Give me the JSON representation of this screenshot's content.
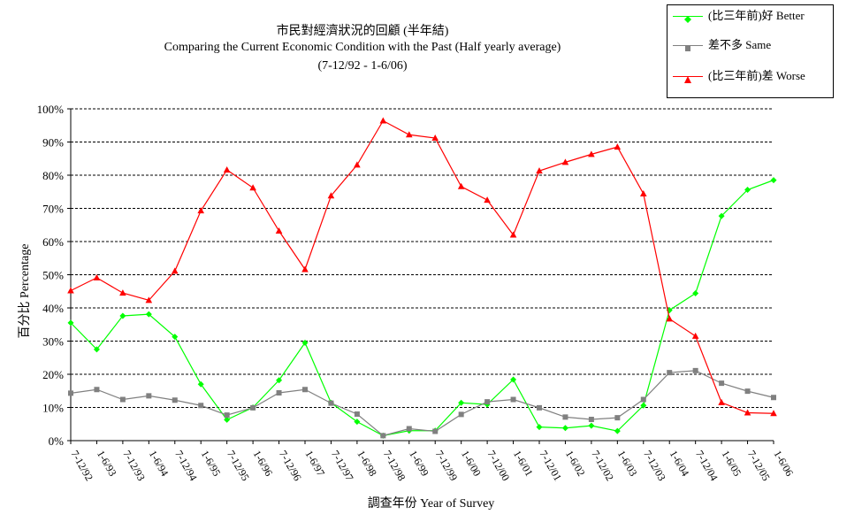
{
  "chart_data": {
    "type": "line",
    "title_zh": "市民對經濟狀況的回顧 (半年結)",
    "title_en": "Comparing the Current Economic Condition with the Past  (Half yearly average)",
    "subtitle": "(7-12/92 - 1-6/06)",
    "ylabel": "百分比 Percentage",
    "xlabel": "調查年份 Year of Survey",
    "ylim": [
      0,
      100
    ],
    "yticks": [
      "0%",
      "10%",
      "20%",
      "30%",
      "40%",
      "50%",
      "60%",
      "70%",
      "80%",
      "90%",
      "100%"
    ],
    "grid": true,
    "legend_position": "top-right",
    "categories": [
      "7-12/92",
      "1-6/93",
      "7-12/93",
      "1-6/94",
      "7-12/94",
      "1-6/95",
      "7-12/95",
      "1-6/96",
      "7-12/96",
      "1-6/97",
      "7-12/97",
      "1-6/98",
      "7-12/98",
      "1-6/99",
      "7-12/99",
      "1-6/00",
      "7-12/00",
      "1-6/01",
      "7-12/01",
      "1-6/02",
      "7-12/02",
      "1-6/03",
      "7-12/03",
      "1-6/04",
      "7-12/04",
      "1-6/05",
      "7-12/05",
      "1-6/06"
    ],
    "series": [
      {
        "name": "(比三年前)好 Better",
        "color": "#00ff00",
        "marker": "diamond",
        "values": [
          35.5,
          27.5,
          37.6,
          38.1,
          31.3,
          17.0,
          6.3,
          10.0,
          18.2,
          29.5,
          11.4,
          5.7,
          1.5,
          3.0,
          3.0,
          11.4,
          10.9,
          18.4,
          4.1,
          3.8,
          4.5,
          2.9,
          10.6,
          39.3,
          44.4,
          67.7,
          75.6,
          78.5
        ]
      },
      {
        "name": "差不多 Same",
        "color": "#808080",
        "marker": "square",
        "values": [
          14.3,
          15.4,
          12.4,
          13.5,
          12.2,
          10.6,
          7.7,
          9.9,
          14.4,
          15.4,
          11.3,
          8.0,
          1.5,
          3.6,
          2.8,
          7.9,
          11.7,
          12.4,
          9.9,
          7.1,
          6.4,
          6.9,
          12.4,
          20.5,
          21.1,
          17.3,
          14.9,
          13.0
        ]
      },
      {
        "name": "(比三年前)差 Worse",
        "color": "#ff0000",
        "marker": "triangle",
        "values": [
          45.2,
          49.1,
          44.5,
          42.3,
          51.1,
          69.3,
          81.6,
          76.2,
          63.2,
          51.6,
          73.8,
          83.1,
          96.4,
          92.2,
          91.2,
          76.6,
          72.5,
          62.0,
          81.3,
          83.9,
          86.3,
          88.5,
          74.4,
          36.7,
          31.5,
          11.5,
          8.4,
          8.2
        ]
      }
    ]
  }
}
